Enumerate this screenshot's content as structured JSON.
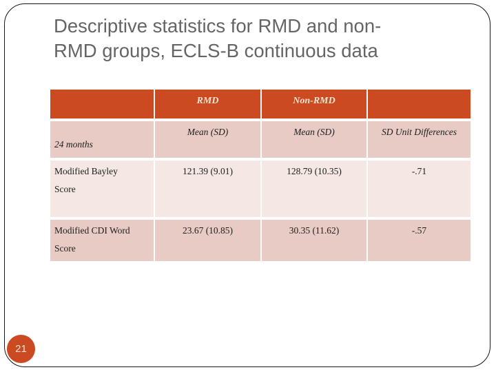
{
  "slide": {
    "title_line1": "Descriptive statistics for RMD and non-",
    "title_line2": "RMD groups, ECLS-B continuous data",
    "page_number": "21"
  },
  "table": {
    "header": [
      "",
      "RMD",
      "Non-RMD",
      ""
    ],
    "subheader": [
      "24 months",
      "Mean (SD)",
      "Mean (SD)",
      "SD Unit Differences"
    ],
    "rows": [
      [
        "Modified Bayley Score",
        "121.39 (9.01)",
        "128.79 (10.35)",
        "-.71"
      ],
      [
        "Modified CDI Word Score",
        "23.67 (10.85)",
        "30.35 (11.62)",
        "-.57"
      ]
    ]
  },
  "colors": {
    "accent_orange": "#CB4A21",
    "row_band_medium": "#E8CBC4",
    "row_band_light": "#F5E7E3",
    "header_text_cream": "#F2E6D2",
    "title_gray": "#656565",
    "frame_border": "#141414"
  }
}
